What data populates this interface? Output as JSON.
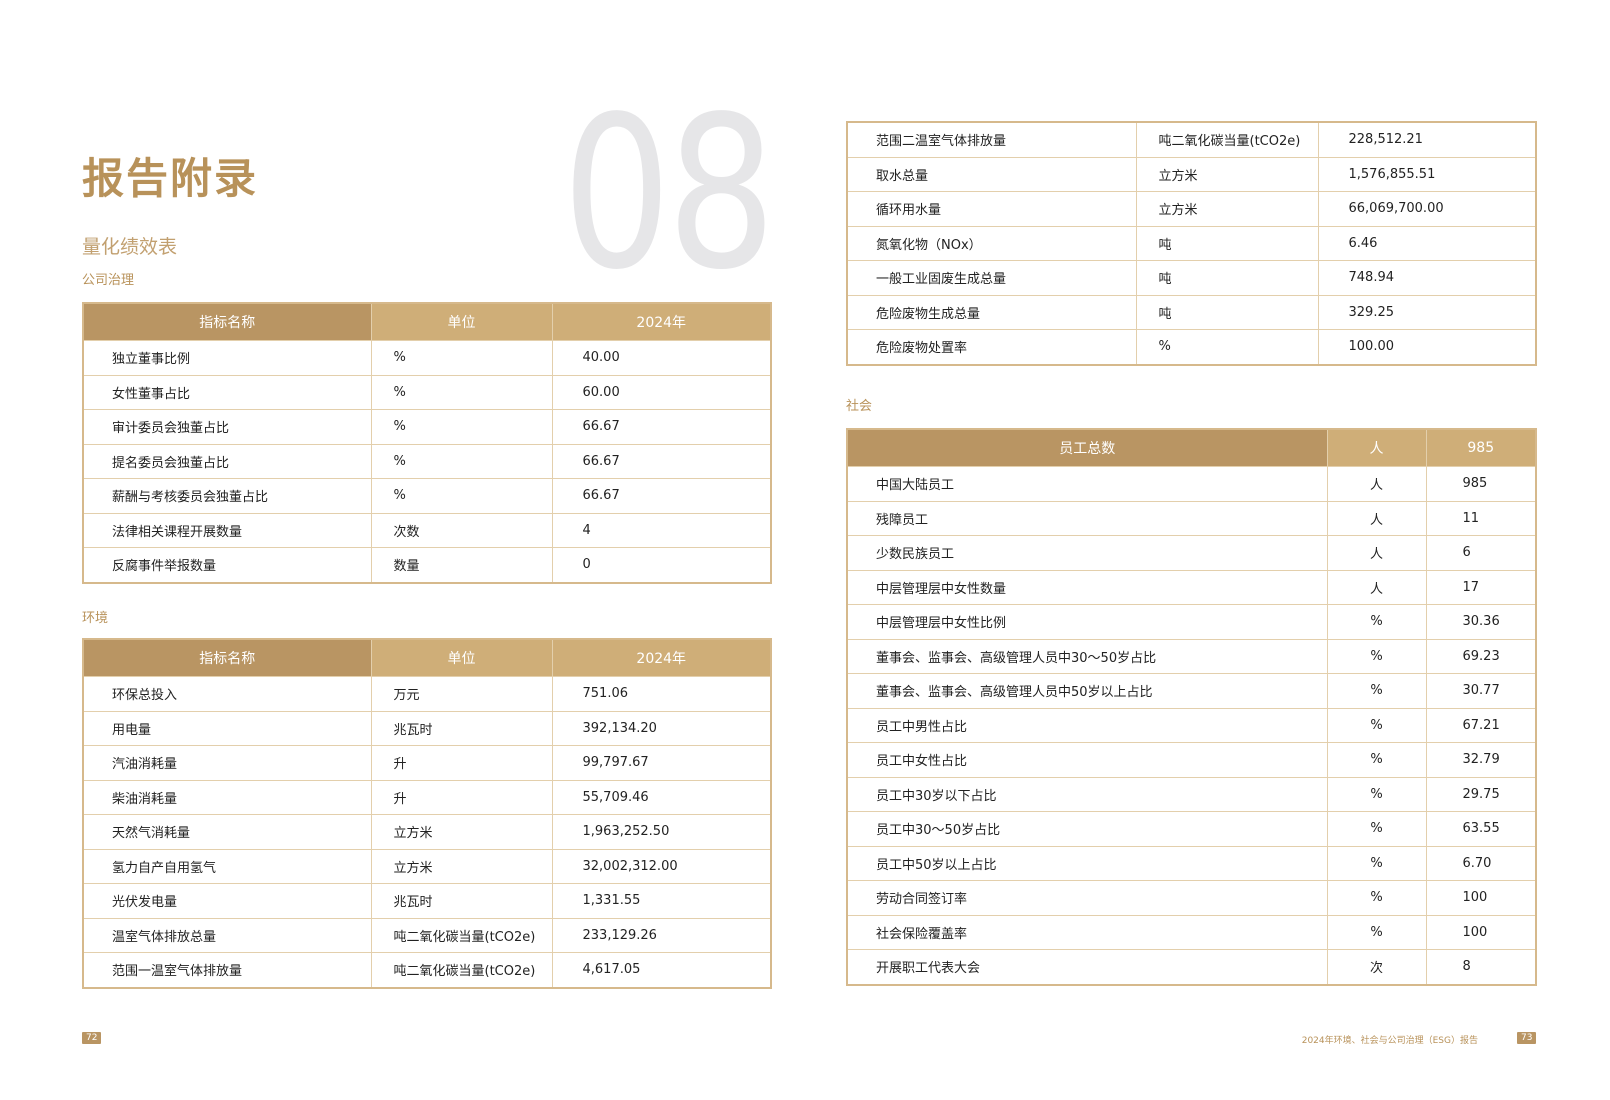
{
  "chapter_number": "08",
  "title": "报告附录",
  "subtitle": "量化绩效表",
  "governance": {
    "section": "公司治理",
    "headers": [
      "指标名称",
      "单位",
      "2024年"
    ],
    "rows": [
      [
        "独立董事比例",
        "%",
        "40.00"
      ],
      [
        "女性董事占比",
        "%",
        "60.00"
      ],
      [
        "审计委员会独董占比",
        "%",
        "66.67"
      ],
      [
        "提名委员会独董占比",
        "%",
        "66.67"
      ],
      [
        "薪酬与考核委员会独董占比",
        "%",
        "66.67"
      ],
      [
        "法律相关课程开展数量",
        "次数",
        "4"
      ],
      [
        "反腐事件举报数量",
        "数量",
        "0"
      ]
    ]
  },
  "environment": {
    "section": "环境",
    "headers": [
      "指标名称",
      "单位",
      "2024年"
    ],
    "rows": [
      [
        "环保总投入",
        "万元",
        "751.06"
      ],
      [
        "用电量",
        "兆瓦时",
        "392,134.20"
      ],
      [
        "汽油消耗量",
        "升",
        "99,797.67"
      ],
      [
        "柴油消耗量",
        "升",
        "55,709.46"
      ],
      [
        "天然气消耗量",
        "立方米",
        "1,963,252.50"
      ],
      [
        "氢力自产自用氢气",
        "立方米",
        "32,002,312.00"
      ],
      [
        "光伏发电量",
        "兆瓦时",
        "1,331.55"
      ],
      [
        "温室气体排放总量",
        "吨二氧化碳当量(tCO2e)",
        "233,129.26"
      ],
      [
        "范围一温室气体排放量",
        "吨二氧化碳当量(tCO2e)",
        "4,617.05"
      ]
    ],
    "continued_rows": [
      [
        "范围二温室气体排放量",
        "吨二氧化碳当量(tCO2e)",
        "228,512.21"
      ],
      [
        "取水总量",
        "立方米",
        "1,576,855.51"
      ],
      [
        "循环用水量",
        "立方米",
        "66,069,700.00"
      ],
      [
        "氮氧化物（NOx）",
        "吨",
        "6.46"
      ],
      [
        "一般工业固废生成总量",
        "吨",
        "748.94"
      ],
      [
        "危险废物生成总量",
        "吨",
        "329.25"
      ],
      [
        "危险废物处置率",
        "%",
        "100.00"
      ]
    ]
  },
  "social": {
    "section": "社会",
    "headers": [
      "员工总数",
      "人",
      "985"
    ],
    "rows": [
      [
        "中国大陆员工",
        "人",
        "985"
      ],
      [
        "残障员工",
        "人",
        "11"
      ],
      [
        "少数民族员工",
        "人",
        "6"
      ],
      [
        "中层管理层中女性数量",
        "人",
        "17"
      ],
      [
        "中层管理层中女性比例",
        "%",
        "30.36"
      ],
      [
        "董事会、监事会、高级管理人员中30～50岁占比",
        "%",
        "69.23"
      ],
      [
        "董事会、监事会、高级管理人员中50岁以上占比",
        "%",
        "30.77"
      ],
      [
        "员工中男性占比",
        "%",
        "67.21"
      ],
      [
        "员工中女性占比",
        "%",
        "32.79"
      ],
      [
        "员工中30岁以下占比",
        "%",
        "29.75"
      ],
      [
        "员工中30～50岁占比",
        "%",
        "63.55"
      ],
      [
        "员工中50岁以上占比",
        "%",
        "6.70"
      ],
      [
        "劳动合同签订率",
        "%",
        "100"
      ],
      [
        "社会保险覆盖率",
        "%",
        "100"
      ],
      [
        "开展职工代表大会",
        "次",
        "8"
      ]
    ]
  },
  "footer": {
    "report_name": "2024年环境、社会与公司治理（ESG）报告",
    "left_page": "72",
    "right_page": "73"
  },
  "colors": {
    "accent": "#b8925a",
    "header_dark": "#b99563",
    "header_light": "#cfae78",
    "border": "#d6b98c",
    "chapter_number": "#e6e6e8"
  }
}
